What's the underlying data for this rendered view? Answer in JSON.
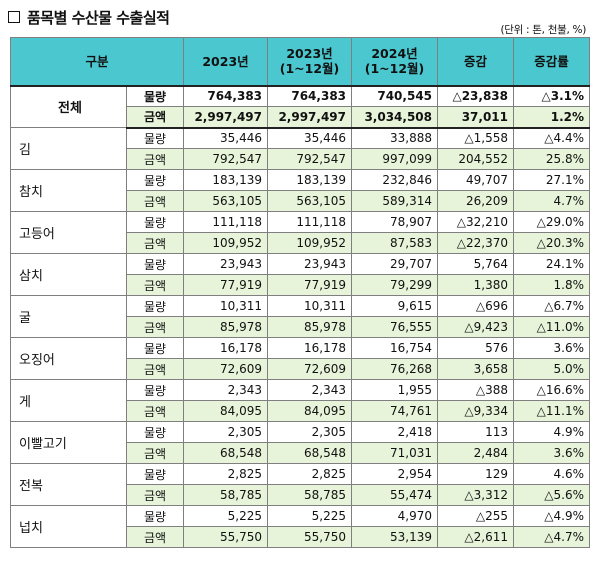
{
  "title": "품목별 수산물 수출실적",
  "unit": "(단위 : 톤, 천불, %)",
  "headers": {
    "category": "구분",
    "col1": "2023년",
    "col2_line1": "2023년",
    "col2_line2": "(1~12월)",
    "col3_line1": "2024년",
    "col3_line2": "(1~12월)",
    "col4": "증감",
    "col5": "증감률"
  },
  "rows": [
    {
      "item": "전체",
      "volume": {
        "label": "물량",
        "v2023": "764,383",
        "v2023p": "764,383",
        "v2024p": "740,545",
        "change": "△23,838",
        "rate": "△3.1%"
      },
      "amount": {
        "label": "금액",
        "v2023": "2,997,497",
        "v2023p": "2,997,497",
        "v2024p": "3,034,508",
        "change": "37,011",
        "rate": "1.2%"
      }
    },
    {
      "item": "김",
      "volume": {
        "label": "물량",
        "v2023": "35,446",
        "v2023p": "35,446",
        "v2024p": "33,888",
        "change": "△1,558",
        "rate": "△4.4%"
      },
      "amount": {
        "label": "금액",
        "v2023": "792,547",
        "v2023p": "792,547",
        "v2024p": "997,099",
        "change": "204,552",
        "rate": "25.8%"
      }
    },
    {
      "item": "참치",
      "volume": {
        "label": "물량",
        "v2023": "183,139",
        "v2023p": "183,139",
        "v2024p": "232,846",
        "change": "49,707",
        "rate": "27.1%"
      },
      "amount": {
        "label": "금액",
        "v2023": "563,105",
        "v2023p": "563,105",
        "v2024p": "589,314",
        "change": "26,209",
        "rate": "4.7%"
      }
    },
    {
      "item": "고등어",
      "volume": {
        "label": "물량",
        "v2023": "111,118",
        "v2023p": "111,118",
        "v2024p": "78,907",
        "change": "△32,210",
        "rate": "△29.0%"
      },
      "amount": {
        "label": "금액",
        "v2023": "109,952",
        "v2023p": "109,952",
        "v2024p": "87,583",
        "change": "△22,370",
        "rate": "△20.3%"
      }
    },
    {
      "item": "삼치",
      "volume": {
        "label": "물량",
        "v2023": "23,943",
        "v2023p": "23,943",
        "v2024p": "29,707",
        "change": "5,764",
        "rate": "24.1%"
      },
      "amount": {
        "label": "금액",
        "v2023": "77,919",
        "v2023p": "77,919",
        "v2024p": "79,299",
        "change": "1,380",
        "rate": "1.8%"
      }
    },
    {
      "item": "굴",
      "volume": {
        "label": "물량",
        "v2023": "10,311",
        "v2023p": "10,311",
        "v2024p": "9,615",
        "change": "△696",
        "rate": "△6.7%"
      },
      "amount": {
        "label": "금액",
        "v2023": "85,978",
        "v2023p": "85,978",
        "v2024p": "76,555",
        "change": "△9,423",
        "rate": "△11.0%"
      }
    },
    {
      "item": "오징어",
      "volume": {
        "label": "물량",
        "v2023": "16,178",
        "v2023p": "16,178",
        "v2024p": "16,754",
        "change": "576",
        "rate": "3.6%"
      },
      "amount": {
        "label": "금액",
        "v2023": "72,609",
        "v2023p": "72,609",
        "v2024p": "76,268",
        "change": "3,658",
        "rate": "5.0%"
      }
    },
    {
      "item": "게",
      "volume": {
        "label": "물량",
        "v2023": "2,343",
        "v2023p": "2,343",
        "v2024p": "1,955",
        "change": "△388",
        "rate": "△16.6%"
      },
      "amount": {
        "label": "금액",
        "v2023": "84,095",
        "v2023p": "84,095",
        "v2024p": "74,761",
        "change": "△9,334",
        "rate": "△11.1%"
      }
    },
    {
      "item": "이빨고기",
      "volume": {
        "label": "물량",
        "v2023": "2,305",
        "v2023p": "2,305",
        "v2024p": "2,418",
        "change": "113",
        "rate": "4.9%"
      },
      "amount": {
        "label": "금액",
        "v2023": "68,548",
        "v2023p": "68,548",
        "v2024p": "71,031",
        "change": "2,484",
        "rate": "3.6%"
      }
    },
    {
      "item": "전복",
      "volume": {
        "label": "물량",
        "v2023": "2,825",
        "v2023p": "2,825",
        "v2024p": "2,954",
        "change": "129",
        "rate": "4.6%"
      },
      "amount": {
        "label": "금액",
        "v2023": "58,785",
        "v2023p": "58,785",
        "v2024p": "55,474",
        "change": "△3,312",
        "rate": "△5.6%"
      }
    },
    {
      "item": "넙치",
      "volume": {
        "label": "물량",
        "v2023": "5,225",
        "v2023p": "5,225",
        "v2024p": "4,970",
        "change": "△255",
        "rate": "△4.9%"
      },
      "amount": {
        "label": "금액",
        "v2023": "55,750",
        "v2023p": "55,750",
        "v2024p": "53,139",
        "change": "△2,611",
        "rate": "△4.7%"
      }
    }
  ],
  "colors": {
    "header_bg": "#4bc8cf",
    "amount_row_bg": "#e7f4d9",
    "border": "#7f7f7f"
  }
}
